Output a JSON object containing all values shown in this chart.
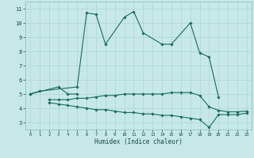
{
  "title": "",
  "xlabel": "Humidex (Indice chaleur)",
  "background_color": "#c6e8e8",
  "grid_color": "#afd4d4",
  "line_color": "#1a6b5a",
  "xlim": [
    -0.5,
    23.5
  ],
  "ylim": [
    2.5,
    11.5
  ],
  "xticks": [
    0,
    1,
    2,
    3,
    4,
    5,
    6,
    7,
    8,
    9,
    10,
    11,
    12,
    13,
    14,
    15,
    16,
    17,
    18,
    19,
    20,
    21,
    22,
    23
  ],
  "yticks": [
    3,
    4,
    5,
    6,
    7,
    8,
    9,
    10,
    11
  ],
  "series": [
    {
      "x": [
        0,
        1,
        5,
        6,
        7,
        8,
        10,
        11,
        12,
        14,
        15,
        17,
        18,
        19,
        20
      ],
      "y": [
        5.0,
        5.2,
        5.5,
        10.7,
        10.6,
        8.5,
        10.4,
        10.8,
        9.3,
        8.5,
        8.5,
        10.0,
        7.9,
        7.6,
        4.8
      ]
    },
    {
      "x": [
        0,
        3,
        4,
        5
      ],
      "y": [
        5.0,
        5.5,
        5.0,
        5.0
      ]
    },
    {
      "x": [
        2,
        3,
        4,
        5,
        6,
        7,
        8,
        9,
        10,
        11,
        12,
        13,
        14,
        15,
        16,
        17,
        18,
        19,
        20,
        21,
        22,
        23
      ],
      "y": [
        4.6,
        4.6,
        4.6,
        4.7,
        4.7,
        4.8,
        4.9,
        4.9,
        5.0,
        5.0,
        5.0,
        5.0,
        5.0,
        5.1,
        5.1,
        5.1,
        4.9,
        4.1,
        3.85,
        3.75,
        3.75,
        3.8
      ]
    },
    {
      "x": [
        2,
        3,
        4,
        5,
        6,
        7,
        8,
        9,
        10,
        11,
        12,
        13,
        14,
        15,
        16,
        17,
        18,
        19,
        20,
        21,
        22,
        23
      ],
      "y": [
        4.4,
        4.3,
        4.2,
        4.1,
        4.0,
        3.9,
        3.9,
        3.8,
        3.7,
        3.7,
        3.6,
        3.6,
        3.5,
        3.5,
        3.4,
        3.3,
        3.2,
        2.65,
        3.55,
        3.55,
        3.55,
        3.65
      ]
    }
  ]
}
